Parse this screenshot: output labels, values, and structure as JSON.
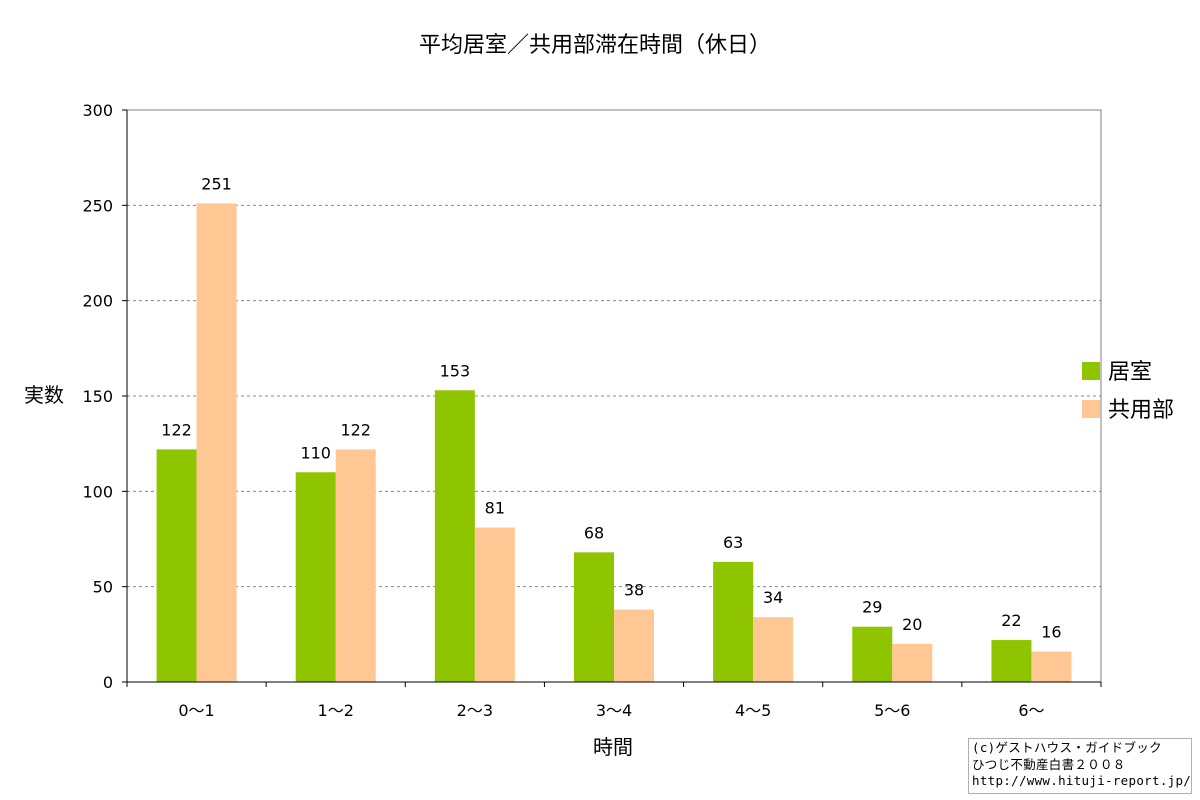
{
  "chart_data": {
    "type": "bar",
    "title": "平均居室／共用部滞在時間（休日）",
    "xlabel": "時間",
    "ylabel": "実数",
    "categories": [
      "0～1",
      "1～2",
      "2～3",
      "3～4",
      "4～5",
      "5～6",
      "6～"
    ],
    "series": [
      {
        "name": "居室",
        "color": "#8fc400",
        "values": [
          122,
          110,
          153,
          68,
          63,
          29,
          22
        ]
      },
      {
        "name": "共用部",
        "color": "#ffc793",
        "values": [
          251,
          122,
          81,
          38,
          34,
          20,
          16
        ]
      }
    ],
    "ylim": [
      0,
      300
    ],
    "yticks": [
      0,
      50,
      100,
      150,
      200,
      250,
      300
    ],
    "grid": true,
    "legend": "right"
  },
  "credit": {
    "line1": "(c)ゲストハウス・ガイドブック",
    "line2": "ひつじ不動産白書２００８",
    "line3": "http://www.hituji-report.jp/"
  }
}
